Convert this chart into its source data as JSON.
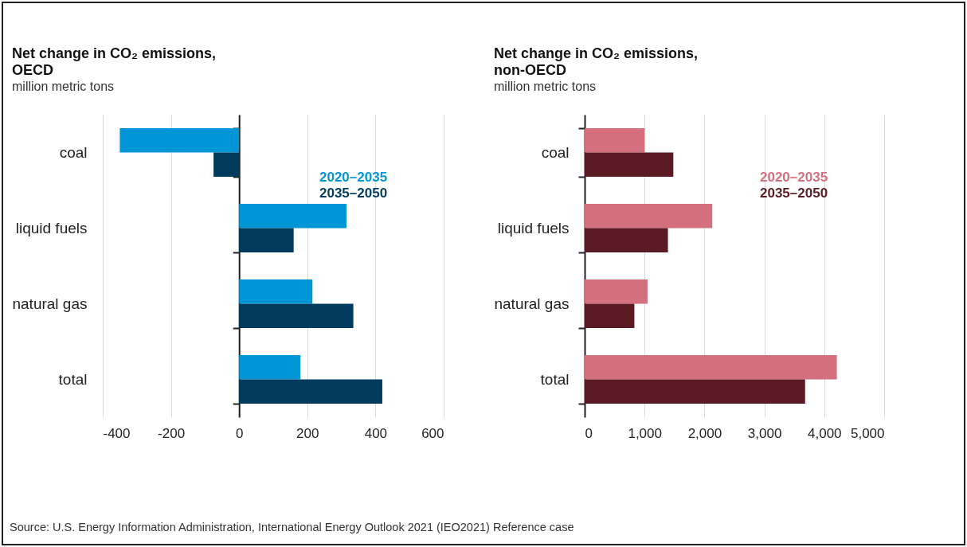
{
  "chart_data": [
    {
      "type": "bar",
      "orientation": "horizontal",
      "title": "Net change in CO₂ emissions, OECD",
      "subtitle": "million metric tons",
      "categories": [
        "coal",
        "liquid fuels",
        "natural gas",
        "total"
      ],
      "series": [
        {
          "name": "2020–2035",
          "color": "#0096d6",
          "values": [
            -350,
            315,
            215,
            180
          ]
        },
        {
          "name": "2035–2050",
          "color": "#003a5c",
          "values": [
            -75,
            160,
            335,
            420
          ]
        }
      ],
      "xlim": [
        -400,
        600
      ],
      "xticks": [
        -400,
        -200,
        0,
        200,
        400,
        600
      ],
      "grid": "x",
      "legend": "top right",
      "annotations": [
        "Source:  U.S. Energy Information Administration, International Energy Outlook 2021 (IEO2021) Reference case"
      ]
    },
    {
      "type": "bar",
      "orientation": "horizontal",
      "title": "Net change in CO₂ emissions, non-OECD",
      "subtitle": "million metric tons",
      "categories": [
        "coal",
        "liquid fuels",
        "natural gas",
        "total"
      ],
      "series": [
        {
          "name": "2020–2035",
          "color": "#d4707e",
          "values": [
            1000,
            2130,
            1050,
            4210
          ]
        },
        {
          "name": "2035–2050",
          "color": "#5a1a24",
          "values": [
            1480,
            1390,
            830,
            3680
          ]
        }
      ],
      "xlim": [
        0,
        5000
      ],
      "xticks": [
        0,
        {
          "value": 1000,
          "label": "1,000"
        },
        {
          "value": 2000,
          "label": "2,000"
        },
        {
          "value": 3000,
          "label": "3,000"
        },
        {
          "value": 4000,
          "label": "4,000"
        },
        {
          "value": 5000,
          "label": "5,000"
        }
      ],
      "grid": "x",
      "legend": "top right"
    }
  ]
}
